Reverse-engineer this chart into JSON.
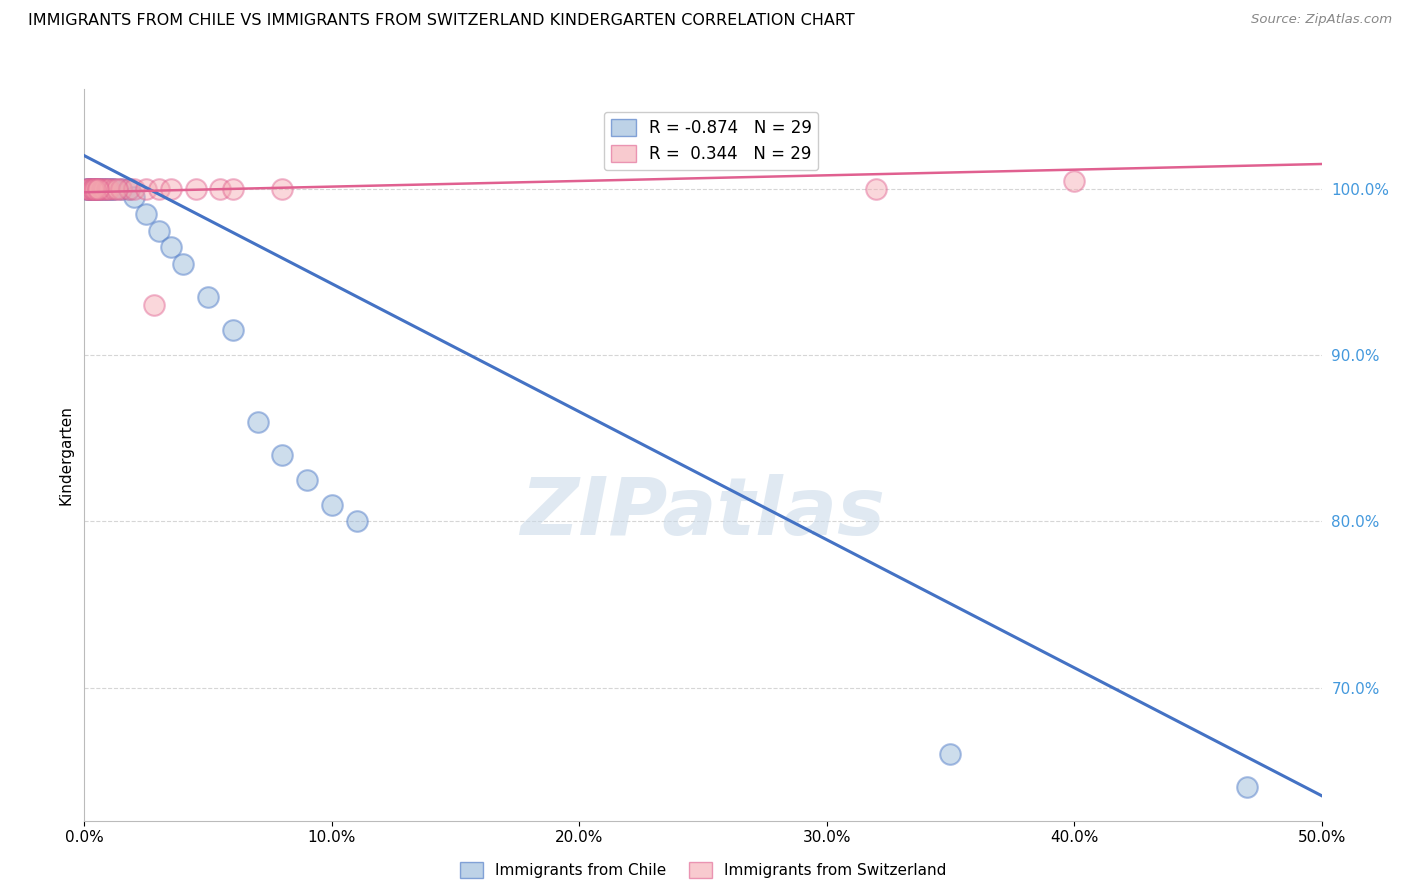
{
  "title": "IMMIGRANTS FROM CHILE VS IMMIGRANTS FROM SWITZERLAND KINDERGARTEN CORRELATION CHART",
  "source": "Source: ZipAtlas.com",
  "ylabel": "Kindergarten",
  "xlim": [
    0.0,
    50.0
  ],
  "ylim": [
    62.0,
    106.0
  ],
  "y_ticks": [
    70.0,
    80.0,
    90.0,
    100.0
  ],
  "x_ticks": [
    0.0,
    10.0,
    20.0,
    30.0,
    40.0,
    50.0
  ],
  "legend_r_chile": "-0.874",
  "legend_n_chile": "29",
  "legend_r_swiss": " 0.344",
  "legend_n_swiss": "29",
  "chile_color": "#92B4D7",
  "swiss_color": "#F4A8B0",
  "chile_edge_color": "#4472C4",
  "swiss_edge_color": "#E06090",
  "chile_line_color": "#4472C4",
  "swiss_line_color": "#E06090",
  "watermark": "ZIPatlas",
  "chile_scatter_x": [
    0.1,
    0.15,
    0.2,
    0.3,
    0.4,
    0.5,
    0.6,
    0.7,
    0.8,
    0.9,
    1.0,
    1.1,
    1.2,
    1.5,
    1.8,
    2.0,
    2.5,
    3.0,
    3.5,
    4.0,
    5.0,
    6.0,
    7.0,
    8.0,
    9.0,
    10.0,
    11.0,
    35.0,
    47.0
  ],
  "chile_scatter_y": [
    100.0,
    100.0,
    100.0,
    100.0,
    100.0,
    100.0,
    100.0,
    100.0,
    100.0,
    100.0,
    100.0,
    100.0,
    100.0,
    100.0,
    100.0,
    99.5,
    98.5,
    97.5,
    96.5,
    95.5,
    93.5,
    91.5,
    86.0,
    84.0,
    82.5,
    81.0,
    80.0,
    66.0,
    64.0
  ],
  "swiss_scatter_x": [
    0.1,
    0.15,
    0.2,
    0.3,
    0.4,
    0.5,
    0.6,
    0.7,
    0.8,
    0.9,
    1.0,
    1.2,
    1.5,
    1.8,
    2.0,
    2.5,
    3.0,
    3.5,
    4.5,
    5.5,
    1.3,
    6.0,
    8.0,
    32.0,
    40.0,
    0.35,
    0.45,
    0.55,
    2.8
  ],
  "swiss_scatter_y": [
    100.0,
    100.0,
    100.0,
    100.0,
    100.0,
    100.0,
    100.0,
    100.0,
    100.0,
    100.0,
    100.0,
    100.0,
    100.0,
    100.0,
    100.0,
    100.0,
    100.0,
    100.0,
    100.0,
    100.0,
    100.0,
    100.0,
    100.0,
    100.0,
    100.5,
    100.0,
    100.0,
    100.0,
    93.0
  ],
  "chile_line_x": [
    0.0,
    50.0
  ],
  "chile_line_y": [
    102.0,
    63.5
  ],
  "swiss_line_x": [
    0.0,
    50.0
  ],
  "swiss_line_y": [
    99.8,
    101.5
  ],
  "background_color": "#FFFFFF",
  "grid_color": "#CCCCCC"
}
